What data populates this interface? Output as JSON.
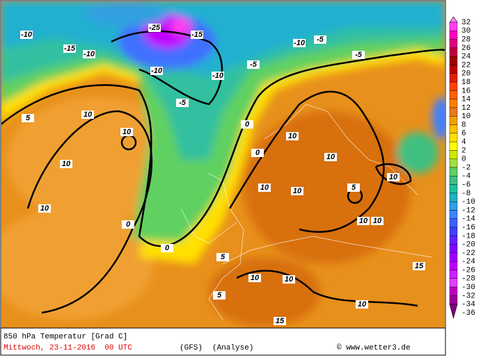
{
  "map": {
    "title": "850 hPa Temperatur [Grad C]",
    "date": "Mittwoch, 23-11-2016  00 UTC",
    "model": "(GFS)",
    "run": "(Analyse)",
    "credit": "© www.wetter3.de",
    "legend": {
      "levels": [
        32,
        30,
        28,
        26,
        24,
        22,
        20,
        18,
        16,
        14,
        12,
        10,
        8,
        6,
        4,
        2,
        0,
        -2,
        -4,
        -6,
        -8,
        -10,
        -12,
        -14,
        -16,
        -18,
        -20,
        -22,
        -24,
        -26,
        -28,
        -30,
        -32,
        -34,
        -36
      ],
      "colors": [
        "#ff80ff",
        "#ff40f0",
        "#ff00c0",
        "#e00080",
        "#c00040",
        "#a00000",
        "#c00000",
        "#e02000",
        "#ff4000",
        "#ff6000",
        "#ff8000",
        "#e87820",
        "#f0a000",
        "#ffc000",
        "#ffe000",
        "#ffff00",
        "#d0e800",
        "#a0e040",
        "#60d060",
        "#40c080",
        "#20c0a0",
        "#20b0c0",
        "#30a0e0",
        "#4080ff",
        "#4060ff",
        "#4040ff",
        "#6020ff",
        "#8000ff",
        "#a000ff",
        "#c000ff",
        "#d020ff",
        "#e040ff",
        "#c000c0",
        "#a000a0",
        "#800080"
      ]
    },
    "contour_labels": [
      10,
      10,
      10,
      10,
      0,
      0,
      -5,
      -10,
      -10,
      -15,
      -25,
      -10,
      -15,
      -10,
      -5,
      -5,
      0,
      0,
      10,
      10,
      10,
      10,
      10,
      10,
      10,
      10,
      15,
      15,
      5,
      5,
      5,
      5,
      10,
      10,
      -5,
      -10
    ]
  }
}
